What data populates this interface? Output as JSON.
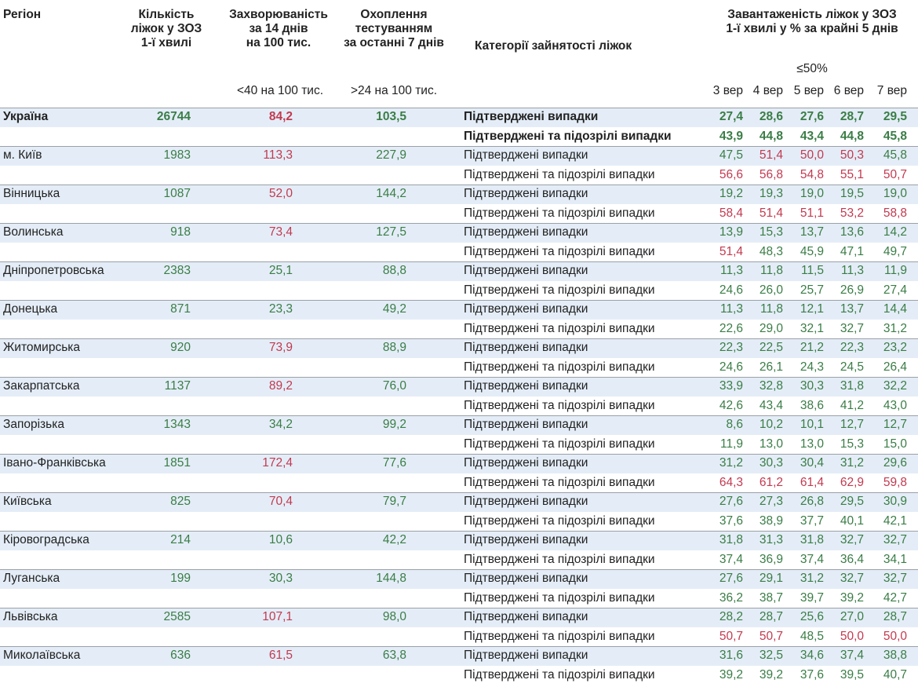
{
  "header": {
    "region": "Регіон",
    "beds": [
      "Кількість",
      "ліжок у ЗОЗ",
      "1-ї хвилі"
    ],
    "incidence": [
      "Захворюваність",
      "за 14 днів",
      "на 100 тис."
    ],
    "incidence_threshold": "<40 на 100 тис.",
    "testing": [
      "Охоплення",
      "тестуванням",
      "за останні 7 днів"
    ],
    "testing_threshold": ">24 на 100 тис.",
    "category": "Категорії зайнятості ліжок",
    "load": [
      "Завантаженість ліжок у ЗОЗ",
      "1-ї хвилі у % за крайні 5 днів"
    ],
    "load_threshold": "≤50%",
    "days": [
      "3 вер",
      "4 вер",
      "5 вер",
      "6 вер",
      "7 вер"
    ]
  },
  "categories": [
    "Підтверджені випадки",
    "Підтверджені та підозрілі випадки"
  ],
  "colors": {
    "green": "#3a7d46",
    "red": "#c23a50"
  },
  "rows": [
    {
      "region": "Україна",
      "beds": "26744",
      "incidence": "84,2",
      "incidence_tone": "red",
      "testing": "103,5",
      "confirmed": [
        "27,4",
        "28,6",
        "27,6",
        "28,7",
        "29,5"
      ],
      "confirmed_tones": [
        "green",
        "green",
        "green",
        "green",
        "green"
      ],
      "suspected": [
        "43,9",
        "44,8",
        "43,4",
        "44,8",
        "45,8"
      ],
      "suspected_tones": [
        "green",
        "green",
        "green",
        "green",
        "green"
      ]
    },
    {
      "region": "м. Київ",
      "beds": "1983",
      "incidence": "113,3",
      "incidence_tone": "red",
      "testing": "227,9",
      "confirmed": [
        "47,5",
        "51,4",
        "50,0",
        "50,3",
        "45,8"
      ],
      "confirmed_tones": [
        "green",
        "red",
        "red",
        "red",
        "green"
      ],
      "suspected": [
        "56,6",
        "56,8",
        "54,8",
        "55,1",
        "50,7"
      ],
      "suspected_tones": [
        "red",
        "red",
        "red",
        "red",
        "red"
      ]
    },
    {
      "region": "Вінницька",
      "beds": "1087",
      "incidence": "52,0",
      "incidence_tone": "red",
      "testing": "144,2",
      "confirmed": [
        "19,2",
        "19,3",
        "19,0",
        "19,5",
        "19,0"
      ],
      "confirmed_tones": [
        "green",
        "green",
        "green",
        "green",
        "green"
      ],
      "suspected": [
        "58,4",
        "51,4",
        "51,1",
        "53,2",
        "58,8"
      ],
      "suspected_tones": [
        "red",
        "red",
        "red",
        "red",
        "red"
      ]
    },
    {
      "region": "Волинська",
      "beds": "918",
      "incidence": "73,4",
      "incidence_tone": "red",
      "testing": "127,5",
      "confirmed": [
        "13,9",
        "15,3",
        "13,7",
        "13,6",
        "14,2"
      ],
      "confirmed_tones": [
        "green",
        "green",
        "green",
        "green",
        "green"
      ],
      "suspected": [
        "51,4",
        "48,3",
        "45,9",
        "47,1",
        "49,7"
      ],
      "suspected_tones": [
        "red",
        "green",
        "green",
        "green",
        "green"
      ]
    },
    {
      "region": "Дніпропетровська",
      "beds": "2383",
      "incidence": "25,1",
      "incidence_tone": "green",
      "testing": "88,8",
      "confirmed": [
        "11,3",
        "11,8",
        "11,5",
        "11,3",
        "11,9"
      ],
      "confirmed_tones": [
        "green",
        "green",
        "green",
        "green",
        "green"
      ],
      "suspected": [
        "24,6",
        "26,0",
        "25,7",
        "26,9",
        "27,4"
      ],
      "suspected_tones": [
        "green",
        "green",
        "green",
        "green",
        "green"
      ]
    },
    {
      "region": "Донецька",
      "beds": "871",
      "incidence": "23,3",
      "incidence_tone": "green",
      "testing": "49,2",
      "confirmed": [
        "11,3",
        "11,8",
        "12,1",
        "13,7",
        "14,4"
      ],
      "confirmed_tones": [
        "green",
        "green",
        "green",
        "green",
        "green"
      ],
      "suspected": [
        "22,6",
        "29,0",
        "32,1",
        "32,7",
        "31,2"
      ],
      "suspected_tones": [
        "green",
        "green",
        "green",
        "green",
        "green"
      ]
    },
    {
      "region": "Житомирська",
      "beds": "920",
      "incidence": "73,9",
      "incidence_tone": "red",
      "testing": "88,9",
      "confirmed": [
        "22,3",
        "22,5",
        "21,2",
        "22,3",
        "23,2"
      ],
      "confirmed_tones": [
        "green",
        "green",
        "green",
        "green",
        "green"
      ],
      "suspected": [
        "24,6",
        "26,1",
        "24,3",
        "24,5",
        "26,4"
      ],
      "suspected_tones": [
        "green",
        "green",
        "green",
        "green",
        "green"
      ]
    },
    {
      "region": "Закарпатська",
      "beds": "1137",
      "incidence": "89,2",
      "incidence_tone": "red",
      "testing": "76,0",
      "confirmed": [
        "33,9",
        "32,8",
        "30,3",
        "31,8",
        "32,2"
      ],
      "confirmed_tones": [
        "green",
        "green",
        "green",
        "green",
        "green"
      ],
      "suspected": [
        "42,6",
        "43,4",
        "38,6",
        "41,2",
        "43,0"
      ],
      "suspected_tones": [
        "green",
        "green",
        "green",
        "green",
        "green"
      ]
    },
    {
      "region": "Запорізька",
      "beds": "1343",
      "incidence": "34,2",
      "incidence_tone": "green",
      "testing": "99,2",
      "confirmed": [
        "8,6",
        "10,2",
        "10,1",
        "12,7",
        "12,7"
      ],
      "confirmed_tones": [
        "green",
        "green",
        "green",
        "green",
        "green"
      ],
      "suspected": [
        "11,9",
        "13,0",
        "13,0",
        "15,3",
        "15,0"
      ],
      "suspected_tones": [
        "green",
        "green",
        "green",
        "green",
        "green"
      ]
    },
    {
      "region": "Івано-Франківська",
      "beds": "1851",
      "incidence": "172,4",
      "incidence_tone": "red",
      "testing": "77,6",
      "confirmed": [
        "31,2",
        "30,3",
        "30,4",
        "31,2",
        "29,6"
      ],
      "confirmed_tones": [
        "green",
        "green",
        "green",
        "green",
        "green"
      ],
      "suspected": [
        "64,3",
        "61,2",
        "61,4",
        "62,9",
        "59,8"
      ],
      "suspected_tones": [
        "red",
        "red",
        "red",
        "red",
        "red"
      ]
    },
    {
      "region": "Київська",
      "beds": "825",
      "incidence": "70,4",
      "incidence_tone": "red",
      "testing": "79,7",
      "confirmed": [
        "27,6",
        "27,3",
        "26,8",
        "29,5",
        "30,9"
      ],
      "confirmed_tones": [
        "green",
        "green",
        "green",
        "green",
        "green"
      ],
      "suspected": [
        "37,6",
        "38,9",
        "37,7",
        "40,1",
        "42,1"
      ],
      "suspected_tones": [
        "green",
        "green",
        "green",
        "green",
        "green"
      ]
    },
    {
      "region": "Кіровоградська",
      "beds": "214",
      "incidence": "10,6",
      "incidence_tone": "green",
      "testing": "42,2",
      "confirmed": [
        "31,8",
        "31,3",
        "31,8",
        "32,7",
        "32,7"
      ],
      "confirmed_tones": [
        "green",
        "green",
        "green",
        "green",
        "green"
      ],
      "suspected": [
        "37,4",
        "36,9",
        "37,4",
        "36,4",
        "34,1"
      ],
      "suspected_tones": [
        "green",
        "green",
        "green",
        "green",
        "green"
      ]
    },
    {
      "region": "Луганська",
      "beds": "199",
      "incidence": "30,3",
      "incidence_tone": "green",
      "testing": "144,8",
      "confirmed": [
        "27,6",
        "29,1",
        "31,2",
        "32,7",
        "32,7"
      ],
      "confirmed_tones": [
        "green",
        "green",
        "green",
        "green",
        "green"
      ],
      "suspected": [
        "36,2",
        "38,7",
        "39,7",
        "39,2",
        "42,7"
      ],
      "suspected_tones": [
        "green",
        "green",
        "green",
        "green",
        "green"
      ]
    },
    {
      "region": "Львівська",
      "beds": "2585",
      "incidence": "107,1",
      "incidence_tone": "red",
      "testing": "98,0",
      "confirmed": [
        "28,2",
        "28,7",
        "25,6",
        "27,0",
        "28,7"
      ],
      "confirmed_tones": [
        "green",
        "green",
        "green",
        "green",
        "green"
      ],
      "suspected": [
        "50,7",
        "50,7",
        "48,5",
        "50,0",
        "50,0"
      ],
      "suspected_tones": [
        "red",
        "red",
        "green",
        "red",
        "red"
      ]
    },
    {
      "region": "Миколаївська",
      "beds": "636",
      "incidence": "61,5",
      "incidence_tone": "red",
      "testing": "63,8",
      "confirmed": [
        "31,6",
        "32,5",
        "34,6",
        "37,4",
        "38,8"
      ],
      "confirmed_tones": [
        "green",
        "green",
        "green",
        "green",
        "green"
      ],
      "suspected": [
        "39,2",
        "39,2",
        "37,6",
        "39,5",
        "40,7"
      ],
      "suspected_tones": [
        "green",
        "green",
        "green",
        "green",
        "green"
      ]
    }
  ]
}
